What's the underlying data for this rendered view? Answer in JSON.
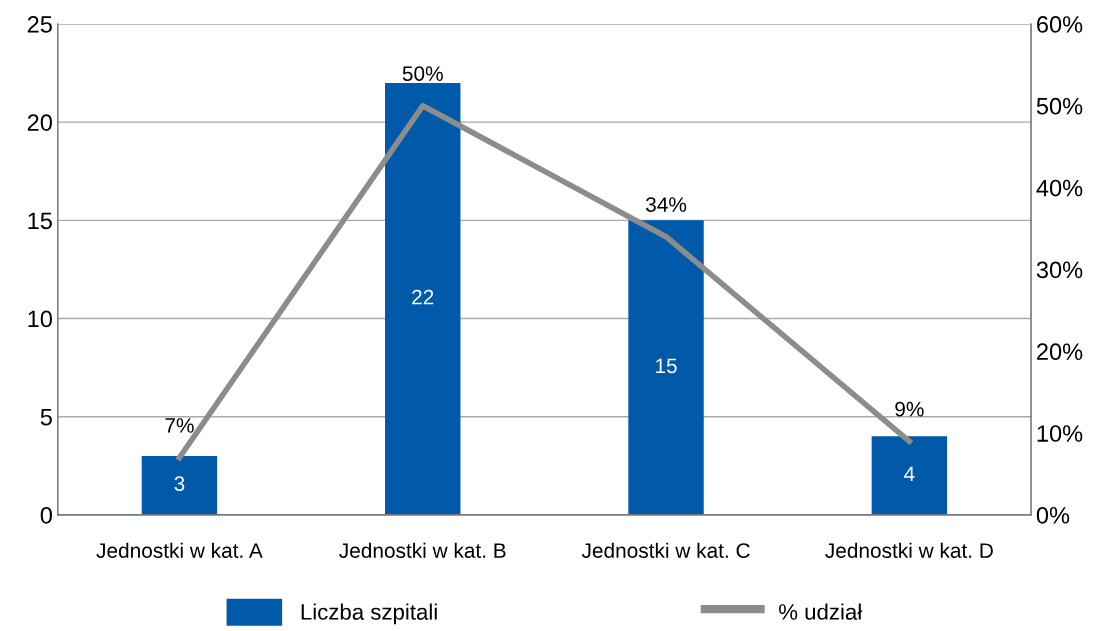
{
  "chart_data": {
    "type": "bar",
    "categories": [
      "Jednostki w kat. A",
      "Jednostki w kat. B",
      "Jednostki w kat. C",
      "Jednostki w kat. D"
    ],
    "series": [
      {
        "name": "Liczba szpitali",
        "color": "#005aa9",
        "values": [
          3,
          22,
          15,
          4
        ]
      },
      {
        "name": "% udział",
        "type": "line",
        "axis": "y2",
        "color": "#8c8c8c",
        "values": [
          7,
          50,
          34,
          9
        ],
        "value_labels": [
          "7%",
          "50%",
          "34%",
          "9%"
        ]
      }
    ],
    "data_labels": true,
    "ylim": [
      0,
      25
    ],
    "yticks": [
      0,
      5,
      10,
      15,
      20,
      25
    ],
    "y2lim": [
      0,
      60
    ],
    "y2ticks": [
      {
        "value": 0,
        "label": "0%"
      },
      {
        "value": 10,
        "label": "10%"
      },
      {
        "value": 20,
        "label": "20%"
      },
      {
        "value": 30,
        "label": "30%"
      },
      {
        "value": 40,
        "label": "40%"
      },
      {
        "value": 50,
        "label": "50%"
      },
      {
        "value": 60,
        "label": "60%"
      }
    ],
    "grid": "y",
    "legend": "bottom",
    "marker": "none",
    "line_style": "solid"
  }
}
